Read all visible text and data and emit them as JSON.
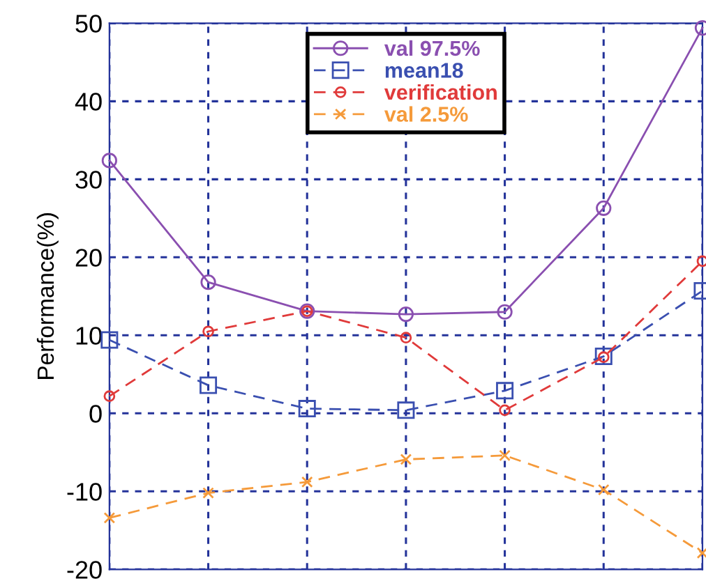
{
  "chart_data": {
    "type": "line",
    "ylabel": "Performance(%)",
    "categories": [
      null,
      null,
      null,
      null,
      null,
      null,
      null
    ],
    "series": [
      {
        "name": "val 97.5%",
        "color": "#8a4fb0",
        "marker": "circle",
        "line_style": "solid",
        "values": [
          32.4,
          16.8,
          13.1,
          12.7,
          13.0,
          26.3,
          49.4
        ]
      },
      {
        "name": "mean18",
        "color": "#3a4fb0",
        "marker": "square",
        "line_style": "dashed",
        "values": [
          9.4,
          3.6,
          0.6,
          0.4,
          2.9,
          7.3,
          15.7
        ]
      },
      {
        "name": "verification",
        "color": "#e03a3a",
        "marker": "circle",
        "line_style": "dashed",
        "values": [
          2.2,
          10.5,
          13.1,
          9.7,
          0.4,
          7.2,
          19.5
        ]
      },
      {
        "name": "val 2.5%",
        "color": "#f59a3a",
        "marker": "cross",
        "line_style": "dashed",
        "values": [
          -13.4,
          -10.2,
          -8.8,
          -5.9,
          -5.4,
          -9.8,
          -17.9
        ]
      }
    ],
    "ylim": [
      -20,
      50
    ],
    "yticks": [
      -20,
      -10,
      0,
      10,
      20,
      30,
      40,
      50
    ],
    "grid": true,
    "legend": "top",
    "tick_labels": "y"
  }
}
